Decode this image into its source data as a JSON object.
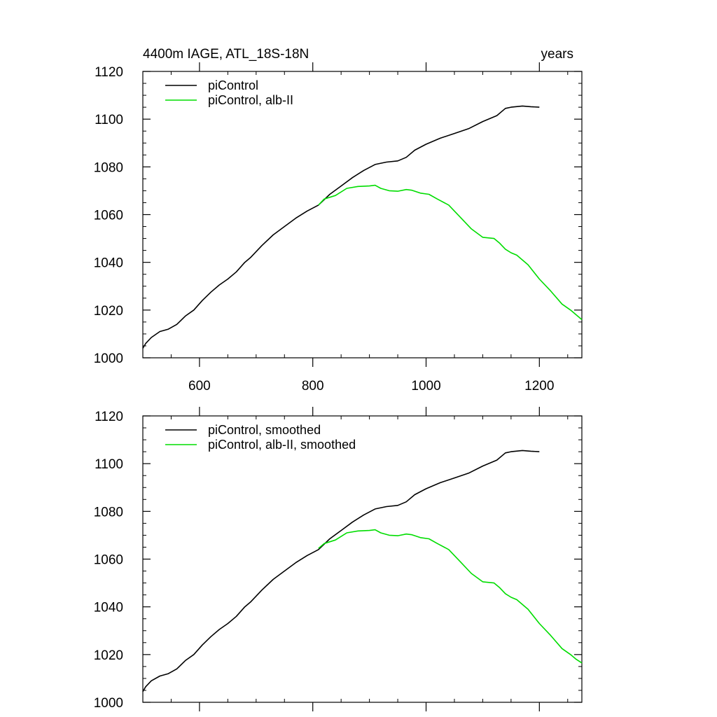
{
  "figure": {
    "title_left": "4400m IAGE, ATL_18S-18N",
    "title_right": "years"
  },
  "colors": {
    "piControl": "#000000",
    "alb_II": "#00dd00",
    "axis": "#000000"
  },
  "chart_data": [
    {
      "type": "line",
      "panel": "top",
      "xlim": [
        500,
        1275
      ],
      "ylim": [
        1000,
        1120
      ],
      "x_ticks": [
        600,
        800,
        1000,
        1200
      ],
      "x_tick_labels": [
        "600",
        "800",
        "1000",
        "1200"
      ],
      "y_ticks": [
        1000,
        1020,
        1040,
        1060,
        1080,
        1100,
        1120
      ],
      "y_tick_labels": [
        "1000",
        "1020",
        "1040",
        "1060",
        "1080",
        "1100",
        "1120"
      ],
      "legend_position": "top-left",
      "series": [
        {
          "name": "piControl",
          "x": [
            500,
            505,
            515,
            530,
            545,
            560,
            575,
            590,
            605,
            620,
            635,
            650,
            665,
            680,
            690,
            710,
            730,
            750,
            770,
            790,
            810,
            830,
            850,
            870,
            890,
            910,
            930,
            950,
            965,
            980,
            1000,
            1025,
            1050,
            1075,
            1100,
            1125,
            1140,
            1150,
            1170,
            1185,
            1200
          ],
          "y": [
            1004,
            1006,
            1008.5,
            1011,
            1012,
            1014,
            1017.5,
            1020,
            1024,
            1027.5,
            1030.5,
            1033,
            1036,
            1040,
            1042,
            1047,
            1051.5,
            1055,
            1058.5,
            1061.5,
            1064,
            1068.5,
            1072,
            1075.5,
            1078.5,
            1081,
            1082,
            1082.5,
            1084,
            1087,
            1089.5,
            1092,
            1094,
            1096,
            1099,
            1101.5,
            1104.5,
            1105,
            1105.5,
            1105.2,
            1105
          ]
        },
        {
          "name": "piControl, alb-II",
          "x": [
            810,
            820,
            840,
            860,
            880,
            900,
            910,
            920,
            935,
            950,
            965,
            975,
            990,
            1005,
            1020,
            1040,
            1060,
            1080,
            1100,
            1120,
            1130,
            1140,
            1150,
            1160,
            1180,
            1200,
            1220,
            1240,
            1255,
            1265,
            1275
          ],
          "y": [
            1064,
            1066.5,
            1068,
            1071,
            1071.8,
            1072,
            1072.3,
            1071,
            1070,
            1069.8,
            1070.5,
            1070.2,
            1069,
            1068.5,
            1066.5,
            1064,
            1059,
            1054,
            1050.5,
            1050,
            1048,
            1045.5,
            1044,
            1043,
            1039,
            1033,
            1028,
            1022.5,
            1020,
            1018,
            1016
          ]
        }
      ]
    },
    {
      "type": "line",
      "panel": "bottom",
      "xlim": [
        500,
        1275
      ],
      "ylim": [
        1000,
        1120
      ],
      "x_ticks": [
        600,
        800,
        1000,
        1200
      ],
      "x_tick_labels": [],
      "y_ticks": [
        1000,
        1020,
        1040,
        1060,
        1080,
        1100,
        1120
      ],
      "y_tick_labels": [
        "1000",
        "1020",
        "1040",
        "1060",
        "1080",
        "1100",
        "1120"
      ],
      "legend_position": "top-left",
      "series": [
        {
          "name": "piControl, smoothed",
          "x": [
            500,
            505,
            515,
            530,
            545,
            560,
            575,
            590,
            605,
            620,
            635,
            650,
            665,
            680,
            690,
            710,
            730,
            750,
            770,
            790,
            810,
            830,
            850,
            870,
            890,
            910,
            930,
            950,
            965,
            980,
            1000,
            1025,
            1050,
            1075,
            1100,
            1125,
            1140,
            1150,
            1170,
            1185,
            1200
          ],
          "y": [
            1004.5,
            1006.5,
            1009,
            1011,
            1012,
            1014,
            1017.5,
            1020,
            1024,
            1027.5,
            1030.5,
            1033,
            1036,
            1040,
            1042,
            1047,
            1051.5,
            1055,
            1058.5,
            1061.5,
            1064,
            1068.5,
            1072,
            1075.5,
            1078.5,
            1081,
            1082,
            1082.5,
            1084,
            1087,
            1089.5,
            1092,
            1094,
            1096,
            1099,
            1101.5,
            1104.5,
            1105,
            1105.5,
            1105.2,
            1105
          ]
        },
        {
          "name": "piControl, alb-II, smoothed",
          "x": [
            810,
            820,
            840,
            860,
            880,
            900,
            910,
            920,
            935,
            950,
            965,
            975,
            990,
            1005,
            1020,
            1040,
            1060,
            1080,
            1100,
            1120,
            1130,
            1140,
            1150,
            1160,
            1180,
            1200,
            1220,
            1240,
            1255,
            1265,
            1275
          ],
          "y": [
            1064.5,
            1066.5,
            1068,
            1071,
            1071.8,
            1072,
            1072.3,
            1071,
            1070,
            1069.8,
            1070.5,
            1070.2,
            1069,
            1068.5,
            1066.5,
            1064,
            1059,
            1054,
            1050.5,
            1050,
            1048,
            1045.5,
            1044,
            1043,
            1039,
            1033,
            1028,
            1022.5,
            1020,
            1018,
            1016.5
          ]
        }
      ]
    }
  ]
}
